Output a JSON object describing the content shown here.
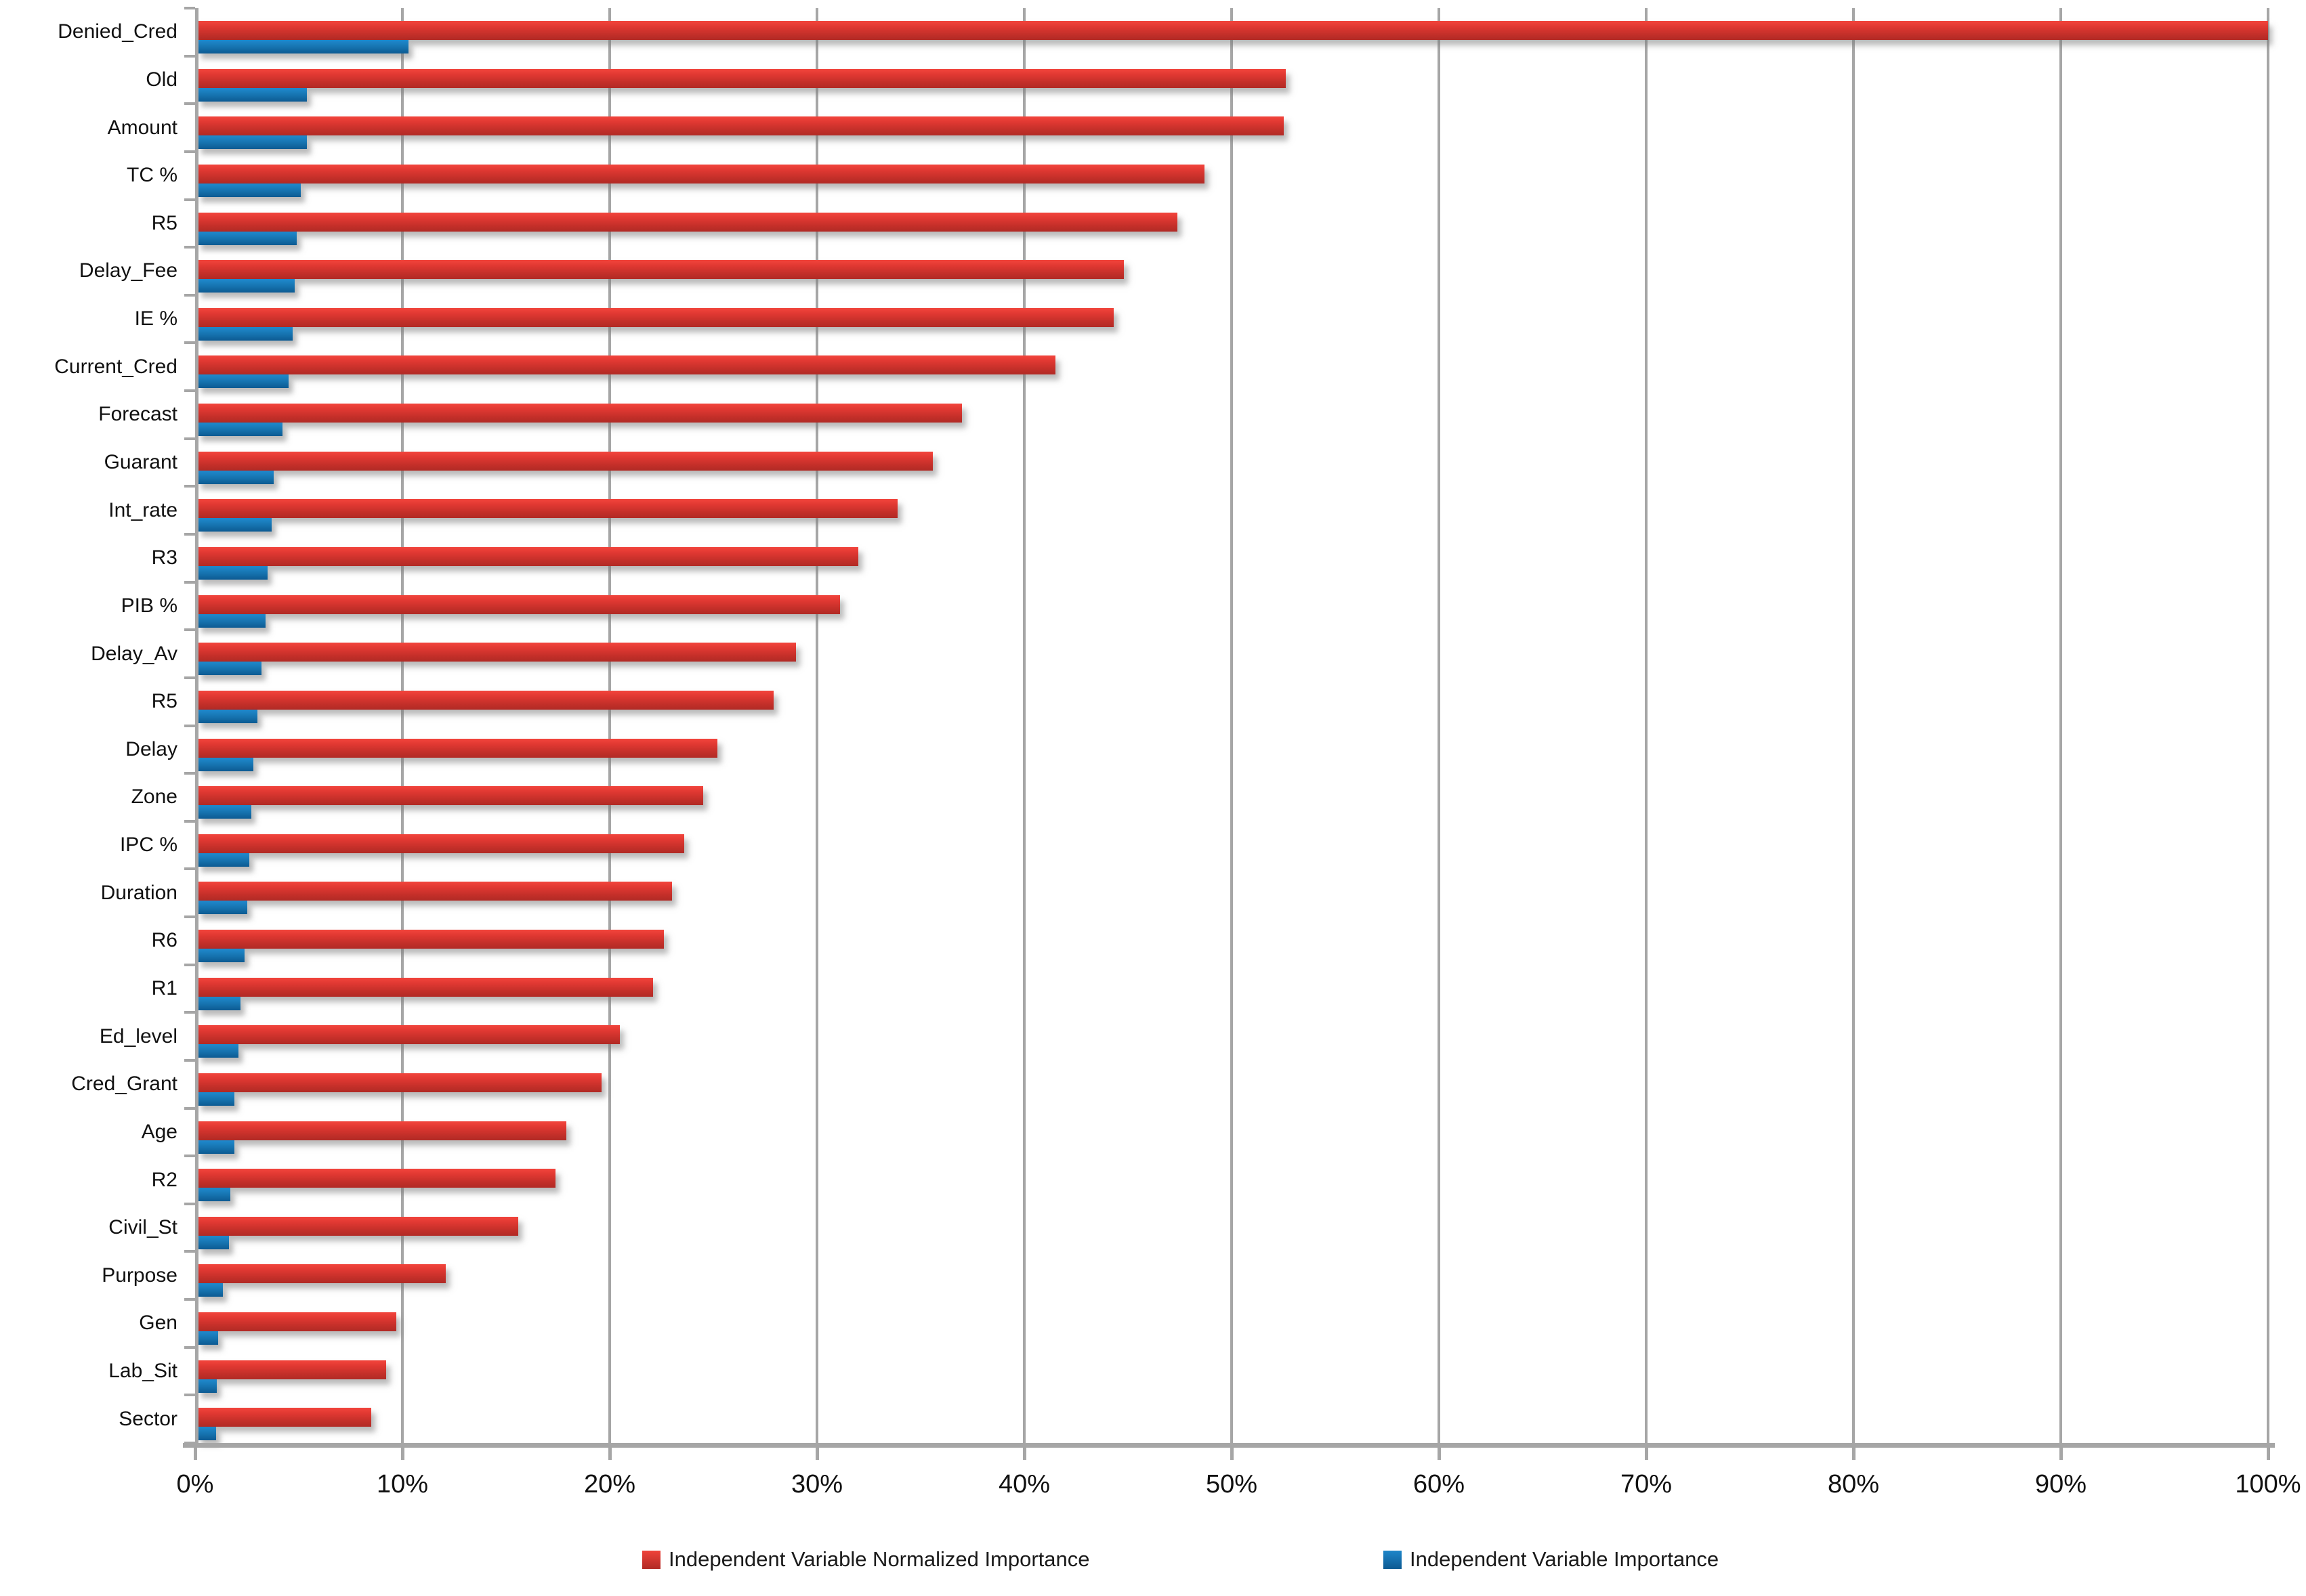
{
  "chart_data": {
    "type": "bar",
    "orientation": "horizontal",
    "title": "",
    "xlabel": "",
    "ylabel": "",
    "xlim": [
      0,
      100
    ],
    "grid": true,
    "legend_position": "bottom",
    "x_ticks": [
      "0%",
      "10%",
      "20%",
      "30%",
      "40%",
      "50%",
      "60%",
      "70%",
      "80%",
      "90%",
      "100%"
    ],
    "categories": [
      "Denied_Cred",
      "Old",
      "Amount",
      "TC %",
      "R5",
      "Delay_Fee",
      "IE %",
      "Current_Cred",
      "Forecast",
      "Guarant",
      "Int_rate",
      "R3",
      "PIB %",
      "Delay_Av",
      "R5",
      "Delay",
      "Zone",
      "IPC %",
      "Duration",
      "R6",
      "R1",
      "Ed_level",
      "Cred_Grant",
      "Age",
      "R2",
      "Civil_St",
      "Purpose",
      "Gen",
      "Lab_Sit",
      "Sector"
    ],
    "series": [
      {
        "name": "Independent Variable Normalized Importance",
        "color": "#cc322b",
        "values": [
          100,
          52.6,
          52.5,
          48.7,
          47.4,
          44.8,
          44.3,
          41.5,
          37.0,
          35.6,
          33.9,
          32.0,
          31.1,
          29.0,
          27.9,
          25.2,
          24.5,
          23.6,
          23.0,
          22.6,
          22.1,
          20.5,
          19.6,
          17.9,
          17.4,
          15.6,
          12.1,
          9.7,
          9.2,
          8.5
        ]
      },
      {
        "name": "Independent Variable Importance",
        "color": "#1272b0",
        "values": [
          10.3,
          5.4,
          5.4,
          5.1,
          4.9,
          4.8,
          4.7,
          4.5,
          4.2,
          3.8,
          3.7,
          3.5,
          3.4,
          3.2,
          3.0,
          2.8,
          2.7,
          2.6,
          2.5,
          2.4,
          2.2,
          2.1,
          1.9,
          1.9,
          1.7,
          1.65,
          1.35,
          1.1,
          1.05,
          1.0
        ]
      }
    ]
  },
  "legend": {
    "normalized_importance": "Independent Variable Normalized Importance",
    "importance": "Independent Variable Importance"
  },
  "colors": {
    "bar_red": "#cc322b",
    "bar_blue": "#1272b0",
    "axis_gray": "#a6a6a6",
    "text": "#111111"
  }
}
